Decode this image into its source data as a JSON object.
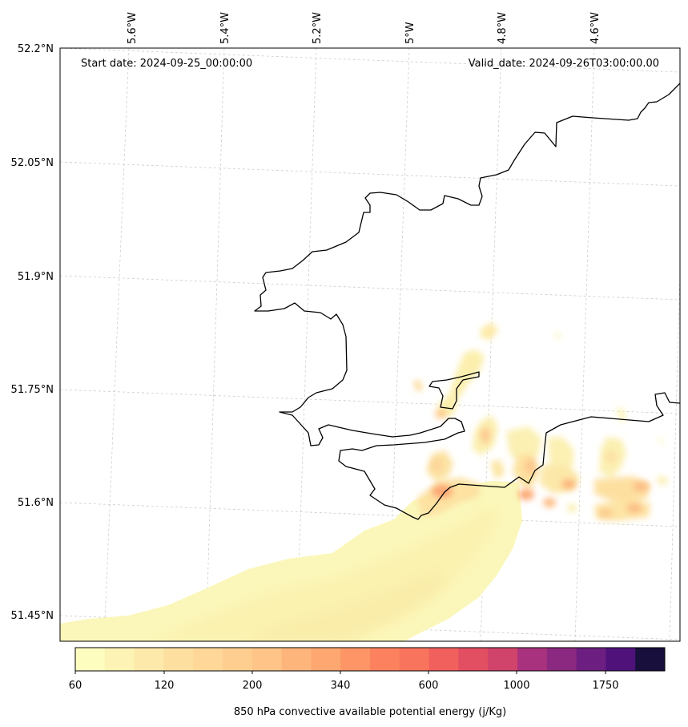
{
  "map": {
    "start_date": "Start date: 2024-09-25_00:00:00",
    "valid_date": "Valid_date: 2024-09-26T03:00:00.00",
    "lon_labels": [
      "5.6°W",
      "5.4°W",
      "5.2°W",
      "5°W",
      "4.8°W",
      "4.6°W"
    ],
    "lat_labels": [
      "52.2°N",
      "52.05°N",
      "51.9°N",
      "51.75°N",
      "51.6°N",
      "51.45°N"
    ],
    "coastline_color": "#000000",
    "gridline_color": "#cccccc"
  },
  "colorbar": {
    "title": "850 hPa convective available potential energy (j/Kg)",
    "tick_labels": [
      "60",
      "120",
      "200",
      "340",
      "600",
      "1000",
      "1750"
    ],
    "colors": [
      "#fcfdbf",
      "#fcf3b4",
      "#fde9a9",
      "#fde0a0",
      "#fed799",
      "#fece91",
      "#fec488",
      "#feb57c",
      "#fea771",
      "#fd9567",
      "#fc825f",
      "#f8745c",
      "#f1605d",
      "#e24e62",
      "#d0436a",
      "#a8327d",
      "#8b2981",
      "#6c1f81",
      "#4f127b",
      "#180f3d"
    ]
  }
}
